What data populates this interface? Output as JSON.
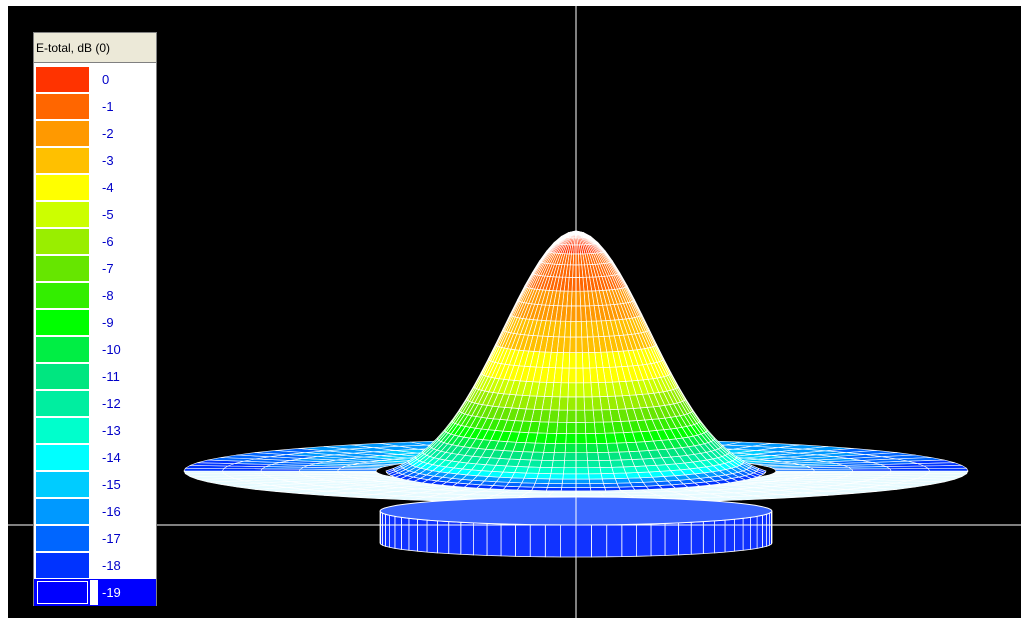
{
  "legend": {
    "title": "E-total, dB (0)",
    "levels": [
      {
        "label": "0",
        "color": "#ff3300"
      },
      {
        "label": "-1",
        "color": "#ff6600"
      },
      {
        "label": "-2",
        "color": "#ff9900"
      },
      {
        "label": "-3",
        "color": "#ffc000"
      },
      {
        "label": "-4",
        "color": "#ffff00"
      },
      {
        "label": "-5",
        "color": "#ccff00"
      },
      {
        "label": "-6",
        "color": "#99ee00"
      },
      {
        "label": "-7",
        "color": "#66e600"
      },
      {
        "label": "-8",
        "color": "#33ee00"
      },
      {
        "label": "-9",
        "color": "#00ff00"
      },
      {
        "label": "-10",
        "color": "#00ee44"
      },
      {
        "label": "-11",
        "color": "#00e680"
      },
      {
        "label": "-12",
        "color": "#00eea0"
      },
      {
        "label": "-13",
        "color": "#00ffcc"
      },
      {
        "label": "-14",
        "color": "#00ffff"
      },
      {
        "label": "-15",
        "color": "#00ccff"
      },
      {
        "label": "-16",
        "color": "#0099ff"
      },
      {
        "label": "-17",
        "color": "#0066ff"
      },
      {
        "label": "-18",
        "color": "#0033ff"
      },
      {
        "label": "-19",
        "color": "#0000ff"
      }
    ],
    "selected_level": "-19"
  },
  "chart_data": {
    "type": "surface-3d",
    "title": "",
    "quantity": "E-total, dB (0)",
    "color_scale_db": [
      0,
      -1,
      -2,
      -3,
      -4,
      -5,
      -6,
      -7,
      -8,
      -9,
      -10,
      -11,
      -12,
      -13,
      -14,
      -15,
      -16,
      -17,
      -18,
      -19
    ],
    "range_db": [
      -19,
      0
    ],
    "peak_db": 0,
    "background": "#000000",
    "axes_color": "#ffffff"
  }
}
